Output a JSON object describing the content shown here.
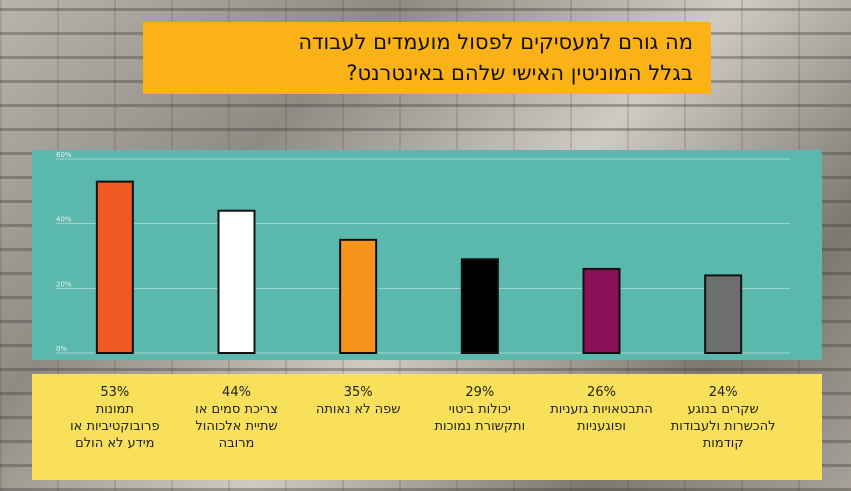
{
  "title_lines": [
    "מה גורם למעסיקים לפסול מועמדים לעבודה",
    "בגלל המוניטין האישי שלהם באינטרנט?"
  ],
  "chart_data": {
    "type": "bar",
    "title": "מה גורם למעסיקים לפסול מועמדים לעבודה בגלל המוניטין האישי שלהם באינטרנט?",
    "ylim": [
      0,
      60
    ],
    "y_ticks": [
      "0%",
      "20%",
      "40%",
      "60%"
    ],
    "grid": true,
    "categories": [
      "תמונות פרובוקטיביות או מידע לא הולם",
      "צריכת סמים או שתיית אלכוהול מרובה",
      "שפה לא נאותה",
      "יכולות ביטוי ותקשורת נמוכות",
      "התבטאויות גזעניות ופוגעניות",
      "שקרים בנוגע להכשרות ולעבודות קודמות"
    ],
    "values": [
      53,
      44,
      35,
      29,
      26,
      24
    ],
    "value_labels": [
      "53%",
      "44%",
      "35%",
      "29%",
      "26%",
      "24%"
    ],
    "label_lines": [
      [
        "תמונות",
        "פרובוקטיביות או",
        "מידע לא הולם"
      ],
      [
        "צריכת סמים או",
        "שתיית אלכוהול",
        "מרובה"
      ],
      [
        "שפה לא נאותה"
      ],
      [
        "יכולות ביטוי",
        "ותקשורת נמוכות"
      ],
      [
        "התבטאויות גזעניות",
        "ופוגעניות"
      ],
      [
        "שקרים בנוגע",
        "להכשרות ולעבודות",
        "קודמות"
      ]
    ],
    "colors": [
      "#f15a22",
      "#ffffff",
      "#f7941d",
      "#000000",
      "#8b1057",
      "#6d6e70"
    ]
  }
}
